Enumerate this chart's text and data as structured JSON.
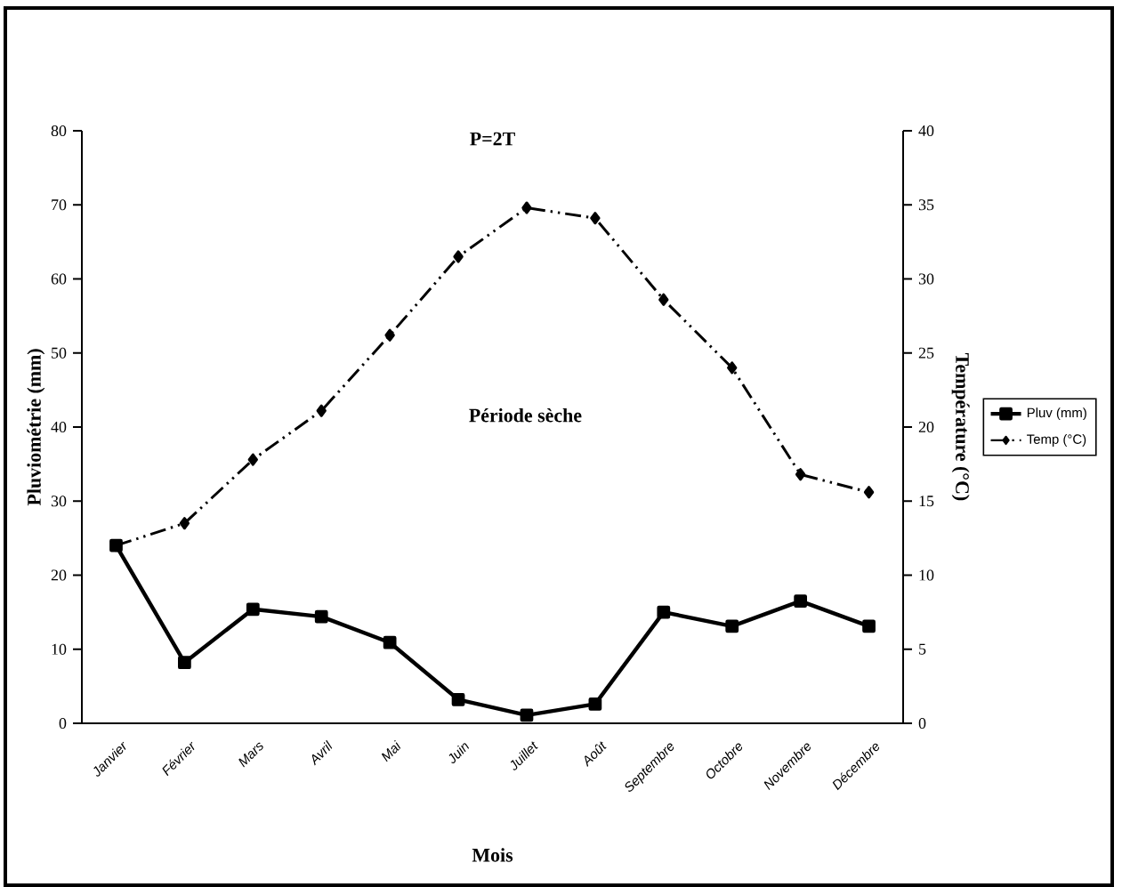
{
  "chart_data": {
    "type": "line",
    "title": "P=2T",
    "xlabel": "Mois",
    "ylabel": "Pluviométrie (mm)",
    "y2label": "Température (°C)",
    "categories": [
      "Janvier",
      "Février",
      "Mars",
      "Avril",
      "Mai",
      "Juin",
      "Juillet",
      "Août",
      "Septembre",
      "Octobre",
      "Novembre",
      "Décembre"
    ],
    "series": [
      {
        "name": "Pluv (mm)",
        "color": "#000000",
        "marker": "square",
        "line_style": "solid",
        "values": [
          24.0,
          8.2,
          15.4,
          14.4,
          10.9,
          3.2,
          1.1,
          2.6,
          15.0,
          13.1,
          16.5,
          13.1
        ]
      },
      {
        "name": "Temp (°C)",
        "color": "#000000",
        "marker": "diamond",
        "line_style": "dashed",
        "axis": "y2",
        "values": [
          12.0,
          13.5,
          17.8,
          21.1,
          26.2,
          31.5,
          34.8,
          34.1,
          28.6,
          24.0,
          16.8,
          15.6
        ]
      }
    ],
    "ylim": [
      0,
      80
    ],
    "yticks": [
      0,
      10,
      20,
      30,
      40,
      50,
      60,
      70,
      80
    ],
    "y2lim": [
      0,
      40
    ],
    "y2ticks": [
      0,
      5,
      10,
      15,
      20,
      25,
      30,
      35,
      40
    ],
    "annotations": [
      "Période sèche"
    ],
    "legend": "right",
    "grid": false
  }
}
